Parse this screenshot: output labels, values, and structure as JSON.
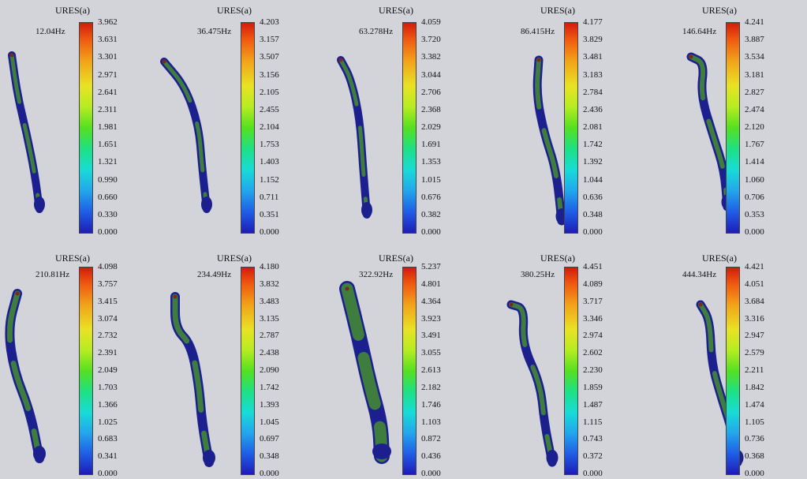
{
  "colors": {
    "background": "#d3d4da",
    "scale_max": "#d21c0c",
    "scale_mid": "#55e020",
    "scale_min": "#1e1cb8",
    "body_green": "#3e7d3e",
    "body_blue": "#1c1f8e"
  },
  "panels": [
    {
      "title": "URES(a)",
      "frequency": "12.04Hz",
      "ticks": [
        "3.962",
        "3.631",
        "3.301",
        "2.971",
        "2.641",
        "2.311",
        "1.981",
        "1.651",
        "1.321",
        "0.990",
        "0.660",
        "0.330",
        "0.000"
      ]
    },
    {
      "title": "URES(a)",
      "frequency": "36.475Hz",
      "ticks": [
        "4.203",
        "3.157",
        "3.507",
        "3.156",
        "2.105",
        "2.455",
        "2.104",
        "1.753",
        "1.403",
        "1.152",
        "0.711",
        "0.351",
        "0.000"
      ]
    },
    {
      "title": "URES(a)",
      "frequency": "63.278Hz",
      "ticks": [
        "4.059",
        "3.720",
        "3.382",
        "3.044",
        "2.706",
        "2.368",
        "2.029",
        "1.691",
        "1.353",
        "1.015",
        "0.676",
        "0.382",
        "0.000"
      ]
    },
    {
      "title": "URES(a)",
      "frequency": "86.415Hz",
      "ticks": [
        "4.177",
        "3.829",
        "3.481",
        "3.183",
        "2.784",
        "2.436",
        "2.081",
        "1.742",
        "1.392",
        "1.044",
        "0.636",
        "0.348",
        "0.000"
      ]
    },
    {
      "title": "URES(a)",
      "frequency": "146.64Hz",
      "ticks": [
        "4.241",
        "3.887",
        "3.534",
        "3.181",
        "2.827",
        "2.474",
        "2.120",
        "1.767",
        "1.414",
        "1.060",
        "0.706",
        "0.353",
        "0.000"
      ]
    },
    {
      "title": "URES(a)",
      "frequency": "210.81Hz",
      "ticks": [
        "4.098",
        "3.757",
        "3.415",
        "3.074",
        "2.732",
        "2.391",
        "2.049",
        "1.703",
        "1.366",
        "1.025",
        "0.683",
        "0.341",
        "0.000"
      ]
    },
    {
      "title": "URES(a)",
      "frequency": "234.49Hz",
      "ticks": [
        "4.180",
        "3.832",
        "3.483",
        "3.135",
        "2.787",
        "2.438",
        "2.090",
        "1.742",
        "1.393",
        "1.045",
        "0.697",
        "0.348",
        "0.000"
      ]
    },
    {
      "title": "URES(a)",
      "frequency": "322.92Hz",
      "ticks": [
        "5.237",
        "4.801",
        "4.364",
        "3.923",
        "3.491",
        "3.055",
        "2.613",
        "2.182",
        "1.746",
        "1.103",
        "0.872",
        "0.436",
        "0.000"
      ]
    },
    {
      "title": "URES(a)",
      "frequency": "380.25Hz",
      "ticks": [
        "4.451",
        "4.089",
        "3.717",
        "3.346",
        "2.974",
        "2.602",
        "2.230",
        "1.859",
        "1.487",
        "1.115",
        "0.743",
        "0.372",
        "0.000"
      ]
    },
    {
      "title": "URES(a)",
      "frequency": "444.34Hz",
      "ticks": [
        "4.421",
        "4.051",
        "3.684",
        "3.316",
        "2.947",
        "2.579",
        "2.211",
        "1.842",
        "1.474",
        "1.105",
        "0.736",
        "0.368",
        "0.000"
      ]
    }
  ]
}
